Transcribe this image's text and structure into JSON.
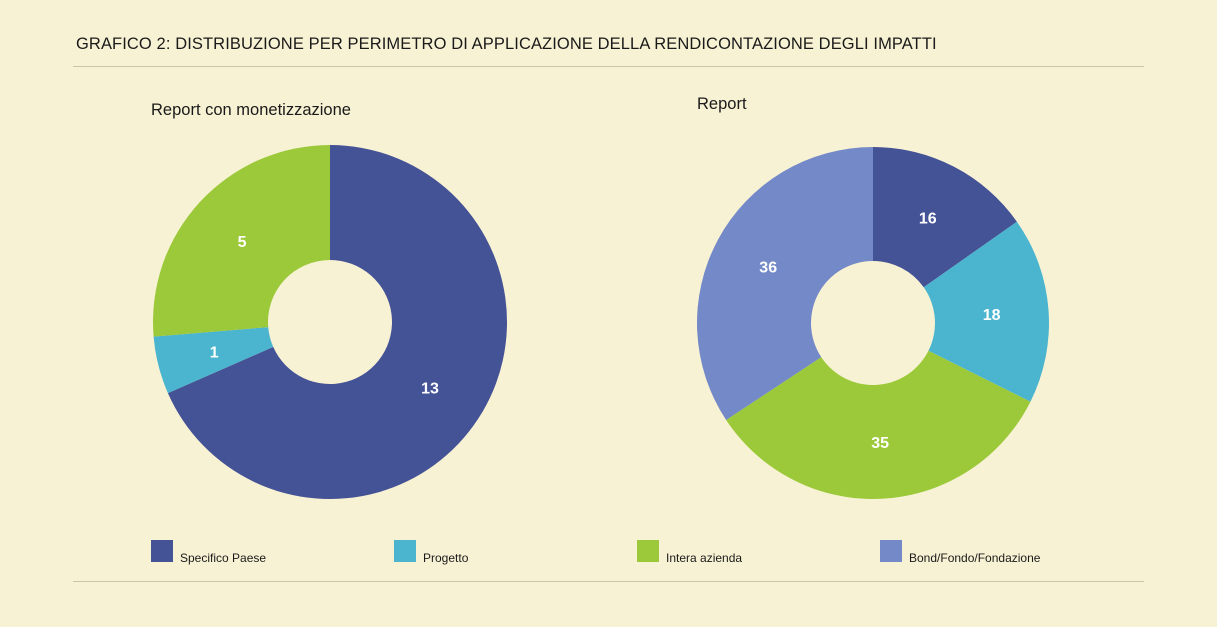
{
  "header": {
    "title": "GRAFICO 2:  DISTRIBUZIONE PER PERIMETRO DI APPLICAZIONE DELLA RENDICONTAZIONE DEGLI IMPATTI"
  },
  "legend": [
    {
      "label": "Specifico Paese",
      "color": "#445296"
    },
    {
      "label": "Progetto",
      "color": "#4bb5cf"
    },
    {
      "label": "Intera azienda",
      "color": "#9cc93a"
    },
    {
      "label": "Bond/Fondo/Fondazione",
      "color": "#7489c8"
    }
  ],
  "chart_data": [
    {
      "type": "pie",
      "variant": "donut",
      "title": "Report con monetizzazione",
      "categories": [
        "Specifico Paese",
        "Progetto",
        "Intera azienda"
      ],
      "values": [
        13,
        1,
        5
      ],
      "colors": [
        "#445296",
        "#4bb5cf",
        "#9cc93a"
      ],
      "start_angle_deg": 0,
      "direction": "clockwise",
      "legend_position": "bottom"
    },
    {
      "type": "pie",
      "variant": "donut",
      "title": "Report",
      "categories": [
        "Specifico Paese",
        "Progetto",
        "Intera azienda",
        "Bond/Fondo/Fondazione"
      ],
      "values": [
        16,
        18,
        35,
        36
      ],
      "colors": [
        "#445296",
        "#4bb5cf",
        "#9cc93a",
        "#7489c8"
      ],
      "start_angle_deg": 0,
      "direction": "clockwise",
      "legend_position": "bottom"
    }
  ]
}
